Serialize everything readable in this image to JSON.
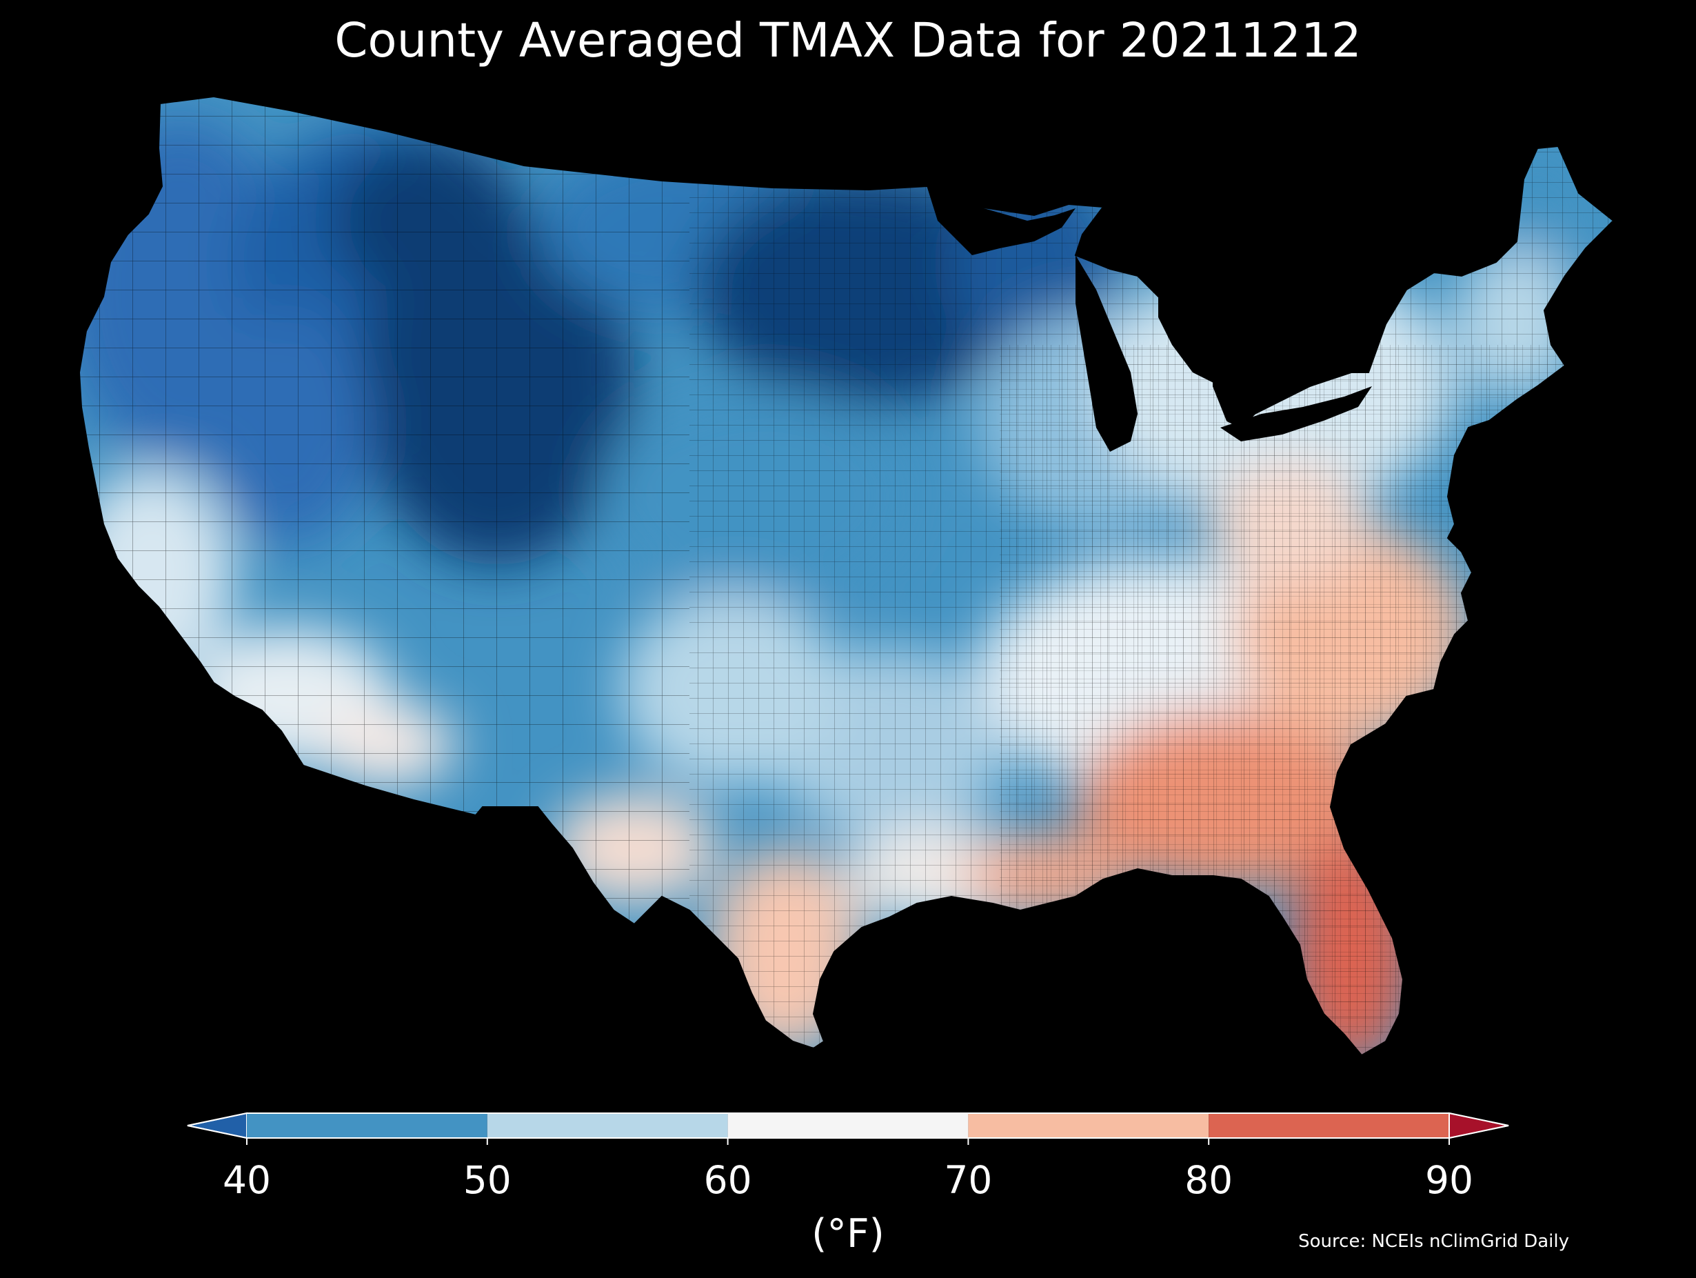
{
  "title": "County Averaged TMAX Data for 20211212",
  "source": "Source: NCEIs nClimGrid Daily",
  "colorbar": {
    "unit_label": "(°F)",
    "ticks": [
      "40",
      "50",
      "60",
      "70",
      "80",
      "90"
    ],
    "bins": [
      {
        "from": 40,
        "to": 50,
        "color": "#4393c3"
      },
      {
        "from": 50,
        "to": 60,
        "color": "#b7d7e8"
      },
      {
        "from": 60,
        "to": 70,
        "color": "#f5f5f5"
      },
      {
        "from": 70,
        "to": 80,
        "color": "#f7bda2"
      },
      {
        "from": 80,
        "to": 90,
        "color": "#dc6451"
      }
    ],
    "under_color": "#2160a8",
    "over_color": "#a7112a"
  },
  "map": {
    "region": "Contiguous United States",
    "unit": "county",
    "variable": "TMAX",
    "date": "20211212",
    "background": "#000000",
    "regional_pattern": [
      {
        "region": "Northern Rockies / High Plains",
        "bin": "< 40",
        "color": "#0b3d73"
      },
      {
        "region": "Upper Midwest / Great Lakes",
        "bin": "< 40",
        "color": "#1c5a9c"
      },
      {
        "region": "Pacific Northwest",
        "bin": "< 40",
        "color": "#2d6db5"
      },
      {
        "region": "Central Plains",
        "bin": "40–50",
        "color": "#4393c3"
      },
      {
        "region": "Northeast / Ohio Valley",
        "bin": "50–60",
        "color": "#b7d7e8"
      },
      {
        "region": "Southwest deserts",
        "bin": "60–70",
        "color": "#f5f5f5"
      },
      {
        "region": "Mid-Atlantic / Carolinas",
        "bin": "70–80",
        "color": "#f7bda2"
      },
      {
        "region": "Gulf Coast / Georgia",
        "bin": "70–80",
        "color": "#ef9f82"
      },
      {
        "region": "Florida",
        "bin": "80–90",
        "color": "#dc6451"
      }
    ]
  }
}
